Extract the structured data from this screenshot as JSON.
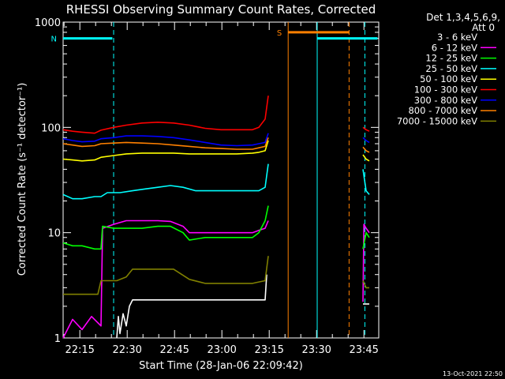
{
  "chart_data": {
    "type": "line",
    "title": "RHESSI Observing Summary Count Rates, Corrected",
    "xlabel": "Start Time (28-Jan-06 22:09:42)",
    "ylabel": "Corrected Count Rate (s⁻¹ detector⁻¹)",
    "x_unit": "minutes after 22:09:42",
    "xlim": [
      0,
      100
    ],
    "ylim": [
      1,
      1000
    ],
    "y_scale": "log",
    "x_ticks": [
      {
        "value": 5.3,
        "label": "22:15"
      },
      {
        "value": 20.3,
        "label": "22:30"
      },
      {
        "value": 35.3,
        "label": "22:45"
      },
      {
        "value": 50.3,
        "label": "23:00"
      },
      {
        "value": 65.3,
        "label": "23:15"
      },
      {
        "value": 80.3,
        "label": "23:30"
      },
      {
        "value": 95.3,
        "label": "23:45"
      }
    ],
    "y_ticks": [
      {
        "value": 1,
        "label": "1"
      },
      {
        "value": 10,
        "label": "10"
      },
      {
        "value": 100,
        "label": "100"
      },
      {
        "value": 1000,
        "label": "1000"
      }
    ],
    "legend": {
      "placement": "right",
      "header": [
        "Det 1,3,4,5,6,9,",
        "Att 0"
      ]
    },
    "series": [
      {
        "name": "3 - 6 keV",
        "color": "#ffffff",
        "legend_color": "#000000",
        "segments": [
          [
            [
              17,
              1
            ],
            [
              17.5,
              1.6
            ],
            [
              18,
              1.1
            ],
            [
              19,
              1.7
            ],
            [
              20,
              1.3
            ],
            [
              21,
              2
            ],
            [
              22,
              2.3
            ],
            [
              25,
              2.3
            ],
            [
              30,
              2.3
            ],
            [
              35,
              2.3
            ],
            [
              40,
              2.3
            ],
            [
              45,
              2.3
            ],
            [
              50,
              2.3
            ],
            [
              55,
              2.3
            ],
            [
              60,
              2.3
            ],
            [
              62,
              2.3
            ],
            [
              64,
              2.3
            ],
            [
              64.5,
              4
            ]
          ],
          [
            [
              95,
              2.1
            ],
            [
              97,
              2.1
            ]
          ]
        ]
      },
      {
        "name": "6 - 12 keV",
        "color": "#ff00ff",
        "segments": [
          [
            [
              0,
              1
            ],
            [
              3,
              1.5
            ],
            [
              6,
              1.2
            ],
            [
              9,
              1.6
            ],
            [
              12,
              1.3
            ],
            [
              12.5,
              11
            ],
            [
              16,
              12
            ],
            [
              20,
              13
            ],
            [
              25,
              13
            ],
            [
              30,
              13
            ],
            [
              34,
              12.8
            ],
            [
              38,
              11.5
            ],
            [
              40,
              10
            ],
            [
              45,
              10
            ],
            [
              50,
              10
            ],
            [
              55,
              10
            ],
            [
              60,
              10
            ],
            [
              62,
              10.5
            ],
            [
              64,
              11
            ],
            [
              65,
              13
            ]
          ],
          [
            [
              95,
              2.2
            ],
            [
              95.3,
              12
            ],
            [
              96,
              11
            ],
            [
              97,
              10
            ]
          ]
        ]
      },
      {
        "name": "12 - 25 keV",
        "color": "#00ff00",
        "segments": [
          [
            [
              0,
              8
            ],
            [
              3,
              7.5
            ],
            [
              6,
              7.5
            ],
            [
              10,
              7
            ],
            [
              12,
              7
            ],
            [
              12.5,
              11.5
            ],
            [
              16,
              11
            ],
            [
              20,
              11
            ],
            [
              25,
              11
            ],
            [
              30,
              11.5
            ],
            [
              34,
              11.5
            ],
            [
              38,
              10
            ],
            [
              40,
              8.5
            ],
            [
              45,
              9
            ],
            [
              50,
              9
            ],
            [
              55,
              9
            ],
            [
              60,
              9
            ],
            [
              62,
              10
            ],
            [
              64,
              13
            ],
            [
              65,
              18
            ]
          ],
          [
            [
              95,
              7
            ],
            [
              96,
              10
            ],
            [
              97,
              9
            ]
          ]
        ]
      },
      {
        "name": "25 - 50 keV",
        "color": "#00ffff",
        "segments": [
          [
            [
              0,
              23
            ],
            [
              3,
              21
            ],
            [
              6,
              21
            ],
            [
              10,
              22
            ],
            [
              12,
              22
            ],
            [
              14,
              24
            ],
            [
              18,
              24
            ],
            [
              22,
              25
            ],
            [
              26,
              26
            ],
            [
              30,
              27
            ],
            [
              34,
              28
            ],
            [
              38,
              27
            ],
            [
              42,
              25
            ],
            [
              46,
              25
            ],
            [
              50,
              25
            ],
            [
              54,
              25
            ],
            [
              58,
              25
            ],
            [
              62,
              25
            ],
            [
              64,
              27
            ],
            [
              65,
              45
            ]
          ],
          [
            [
              95,
              40
            ],
            [
              96,
              25
            ],
            [
              97,
              23
            ]
          ]
        ]
      },
      {
        "name": "50 - 100 keV",
        "color": "#ffff00",
        "segments": [
          [
            [
              0,
              50
            ],
            [
              3,
              49
            ],
            [
              6,
              48
            ],
            [
              10,
              49
            ],
            [
              12,
              52
            ],
            [
              16,
              54
            ],
            [
              20,
              56
            ],
            [
              25,
              57
            ],
            [
              30,
              57
            ],
            [
              35,
              57
            ],
            [
              40,
              56
            ],
            [
              45,
              56
            ],
            [
              50,
              56
            ],
            [
              55,
              56
            ],
            [
              60,
              57
            ],
            [
              62,
              58
            ],
            [
              64,
              60
            ],
            [
              65,
              75
            ]
          ],
          [
            [
              95,
              55
            ],
            [
              96,
              50
            ],
            [
              97,
              48
            ]
          ]
        ]
      },
      {
        "name": "100 - 300 keV",
        "color": "#ff0000",
        "segments": [
          [
            [
              0,
              95
            ],
            [
              3,
              92
            ],
            [
              6,
              90
            ],
            [
              10,
              88
            ],
            [
              12,
              94
            ],
            [
              16,
              100
            ],
            [
              20,
              105
            ],
            [
              25,
              110
            ],
            [
              30,
              112
            ],
            [
              35,
              110
            ],
            [
              40,
              105
            ],
            [
              45,
              98
            ],
            [
              50,
              95
            ],
            [
              55,
              95
            ],
            [
              60,
              95
            ],
            [
              62,
              100
            ],
            [
              64,
              120
            ],
            [
              65,
              200
            ]
          ],
          [
            [
              95,
              100
            ],
            [
              96,
              95
            ],
            [
              97,
              92
            ]
          ]
        ]
      },
      {
        "name": "300 - 800 keV",
        "color": "#0000ff",
        "segments": [
          [
            [
              0,
              78
            ],
            [
              3,
              75
            ],
            [
              6,
              73
            ],
            [
              10,
              74
            ],
            [
              12,
              78
            ],
            [
              16,
              80
            ],
            [
              20,
              83
            ],
            [
              25,
              83
            ],
            [
              30,
              82
            ],
            [
              35,
              80
            ],
            [
              40,
              76
            ],
            [
              45,
              72
            ],
            [
              50,
              68
            ],
            [
              55,
              67
            ],
            [
              60,
              68
            ],
            [
              62,
              70
            ],
            [
              64,
              72
            ],
            [
              65,
              88
            ]
          ],
          [
            [
              95,
              80
            ],
            [
              96,
              75
            ],
            [
              97,
              72
            ]
          ]
        ]
      },
      {
        "name": "800 - 7000 keV",
        "color": "#ff8000",
        "segments": [
          [
            [
              0,
              70
            ],
            [
              3,
              68
            ],
            [
              6,
              66
            ],
            [
              10,
              67
            ],
            [
              12,
              70
            ],
            [
              16,
              71
            ],
            [
              20,
              72
            ],
            [
              25,
              71
            ],
            [
              30,
              70
            ],
            [
              35,
              68
            ],
            [
              40,
              66
            ],
            [
              45,
              64
            ],
            [
              50,
              63
            ],
            [
              55,
              62
            ],
            [
              60,
              62
            ],
            [
              62,
              64
            ],
            [
              64,
              66
            ],
            [
              65,
              80
            ]
          ],
          [
            [
              95,
              65
            ],
            [
              96,
              60
            ],
            [
              97,
              58
            ]
          ]
        ]
      },
      {
        "name": "7000 - 15000 keV",
        "color": "#808000",
        "segments": [
          [
            [
              0,
              2.6
            ],
            [
              4,
              2.6
            ],
            [
              8,
              2.6
            ],
            [
              11,
              2.6
            ],
            [
              12,
              3.5
            ],
            [
              17,
              3.5
            ],
            [
              20,
              3.8
            ],
            [
              22,
              4.5
            ],
            [
              25,
              4.5
            ],
            [
              30,
              4.5
            ],
            [
              35,
              4.5
            ],
            [
              40,
              3.6
            ],
            [
              45,
              3.3
            ],
            [
              50,
              3.3
            ],
            [
              55,
              3.3
            ],
            [
              60,
              3.3
            ],
            [
              62,
              3.4
            ],
            [
              64,
              3.5
            ],
            [
              65,
              6
            ]
          ],
          [
            [
              95,
              3.5
            ],
            [
              96,
              3
            ],
            [
              97,
              3
            ]
          ]
        ]
      }
    ],
    "annotations": [
      {
        "type": "bar",
        "label": "N",
        "x0": 0,
        "x1": 15.6,
        "y": 700,
        "color": "#00ffff"
      },
      {
        "type": "bar",
        "label": "S",
        "x0": 71.3,
        "x1": 90.6,
        "y": 800,
        "color": "#ff8000"
      },
      {
        "type": "bar",
        "label": "",
        "x0": 80.5,
        "x1": 99.6,
        "y": 700,
        "color": "#00ffff"
      },
      {
        "type": "vline",
        "x": 16.0,
        "style": "dashed",
        "color": "#00ffff"
      },
      {
        "type": "vline",
        "x": 71.3,
        "style": "solid",
        "color": "#ff8000"
      },
      {
        "type": "vline",
        "x": 80.5,
        "style": "solid",
        "color": "#00ffff"
      },
      {
        "type": "vline",
        "x": 90.6,
        "style": "dashed",
        "color": "#ff8000"
      },
      {
        "type": "vline",
        "x": 95.6,
        "style": "dashed",
        "color": "#00ffff"
      }
    ]
  },
  "footer_timestamp": "13-Oct-2021 22:50"
}
